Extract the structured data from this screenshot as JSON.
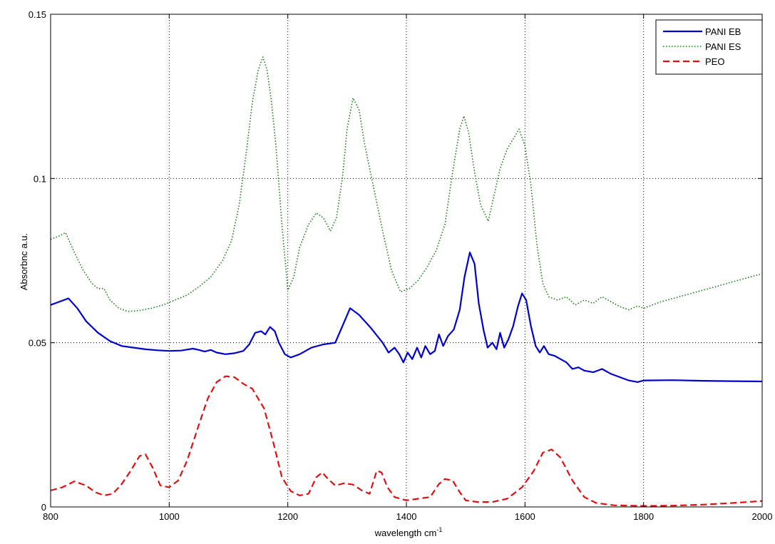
{
  "chart_data": {
    "type": "line",
    "title": "",
    "xlabel": "wavelength cm",
    "xlabel_superscript": "-1",
    "ylabel": "Absorbnc a.u.",
    "xlim": [
      800,
      2000
    ],
    "ylim": [
      0,
      0.15
    ],
    "xticks": [
      800,
      1000,
      1200,
      1400,
      1600,
      1800,
      2000
    ],
    "xtick_labels": [
      "800",
      "1000",
      "1200",
      "1400",
      "1600",
      "1800",
      "2000"
    ],
    "yticks": [
      0,
      0.05,
      0.1,
      0.15
    ],
    "ytick_labels": [
      "0",
      "0.05",
      "0.1",
      "0.15"
    ],
    "grid": true,
    "legend_position": "top-right",
    "series": [
      {
        "name": "PANI EB",
        "color": "#0000cc",
        "style": "solid",
        "points": [
          [
            800,
            0.0615
          ],
          [
            815,
            0.0625
          ],
          [
            830,
            0.0635
          ],
          [
            845,
            0.0605
          ],
          [
            860,
            0.0565
          ],
          [
            880,
            0.053
          ],
          [
            900,
            0.0505
          ],
          [
            920,
            0.049
          ],
          [
            940,
            0.0485
          ],
          [
            960,
            0.048
          ],
          [
            980,
            0.0477
          ],
          [
            1000,
            0.0475
          ],
          [
            1020,
            0.0476
          ],
          [
            1040,
            0.0482
          ],
          [
            1050,
            0.0478
          ],
          [
            1060,
            0.0473
          ],
          [
            1070,
            0.0478
          ],
          [
            1080,
            0.047
          ],
          [
            1095,
            0.0465
          ],
          [
            1110,
            0.0468
          ],
          [
            1125,
            0.0475
          ],
          [
            1135,
            0.0495
          ],
          [
            1145,
            0.053
          ],
          [
            1155,
            0.0535
          ],
          [
            1162,
            0.0525
          ],
          [
            1170,
            0.0548
          ],
          [
            1178,
            0.0535
          ],
          [
            1185,
            0.05
          ],
          [
            1195,
            0.0465
          ],
          [
            1205,
            0.0455
          ],
          [
            1220,
            0.0465
          ],
          [
            1240,
            0.0485
          ],
          [
            1260,
            0.0495
          ],
          [
            1280,
            0.05
          ],
          [
            1292,
            0.055
          ],
          [
            1305,
            0.0605
          ],
          [
            1320,
            0.0585
          ],
          [
            1340,
            0.0545
          ],
          [
            1360,
            0.05
          ],
          [
            1370,
            0.047
          ],
          [
            1380,
            0.0485
          ],
          [
            1388,
            0.0465
          ],
          [
            1395,
            0.044
          ],
          [
            1402,
            0.047
          ],
          [
            1410,
            0.045
          ],
          [
            1418,
            0.0485
          ],
          [
            1425,
            0.0455
          ],
          [
            1432,
            0.049
          ],
          [
            1440,
            0.0465
          ],
          [
            1448,
            0.0475
          ],
          [
            1455,
            0.0525
          ],
          [
            1462,
            0.049
          ],
          [
            1470,
            0.052
          ],
          [
            1480,
            0.054
          ],
          [
            1490,
            0.06
          ],
          [
            1498,
            0.07
          ],
          [
            1507,
            0.0775
          ],
          [
            1515,
            0.074
          ],
          [
            1522,
            0.062
          ],
          [
            1530,
            0.054
          ],
          [
            1537,
            0.0485
          ],
          [
            1545,
            0.05
          ],
          [
            1552,
            0.048
          ],
          [
            1558,
            0.053
          ],
          [
            1565,
            0.0485
          ],
          [
            1572,
            0.051
          ],
          [
            1580,
            0.055
          ],
          [
            1588,
            0.061
          ],
          [
            1595,
            0.065
          ],
          [
            1602,
            0.063
          ],
          [
            1610,
            0.055
          ],
          [
            1618,
            0.049
          ],
          [
            1625,
            0.047
          ],
          [
            1632,
            0.049
          ],
          [
            1640,
            0.0465
          ],
          [
            1650,
            0.046
          ],
          [
            1660,
            0.045
          ],
          [
            1670,
            0.044
          ],
          [
            1680,
            0.042
          ],
          [
            1690,
            0.0425
          ],
          [
            1700,
            0.0415
          ],
          [
            1715,
            0.041
          ],
          [
            1730,
            0.042
          ],
          [
            1745,
            0.0405
          ],
          [
            1760,
            0.0395
          ],
          [
            1775,
            0.0385
          ],
          [
            1790,
            0.038
          ],
          [
            1800,
            0.0385
          ],
          [
            1850,
            0.0386
          ],
          [
            1900,
            0.0384
          ],
          [
            1950,
            0.0383
          ],
          [
            2000,
            0.0382
          ]
        ]
      },
      {
        "name": "PANI ES",
        "color": "#1a7a1a",
        "style": "dotted",
        "points": [
          [
            800,
            0.0815
          ],
          [
            815,
            0.0825
          ],
          [
            825,
            0.0835
          ],
          [
            840,
            0.0775
          ],
          [
            855,
            0.072
          ],
          [
            870,
            0.068
          ],
          [
            880,
            0.0665
          ],
          [
            890,
            0.0665
          ],
          [
            900,
            0.063
          ],
          [
            915,
            0.0605
          ],
          [
            930,
            0.0595
          ],
          [
            950,
            0.0598
          ],
          [
            970,
            0.0605
          ],
          [
            990,
            0.0615
          ],
          [
            1010,
            0.063
          ],
          [
            1030,
            0.0645
          ],
          [
            1050,
            0.067
          ],
          [
            1070,
            0.07
          ],
          [
            1090,
            0.075
          ],
          [
            1105,
            0.081
          ],
          [
            1118,
            0.092
          ],
          [
            1130,
            0.108
          ],
          [
            1140,
            0.123
          ],
          [
            1150,
            0.133
          ],
          [
            1158,
            0.137
          ],
          [
            1165,
            0.133
          ],
          [
            1172,
            0.124
          ],
          [
            1180,
            0.11
          ],
          [
            1190,
            0.086
          ],
          [
            1200,
            0.066
          ],
          [
            1210,
            0.07
          ],
          [
            1220,
            0.079
          ],
          [
            1235,
            0.086
          ],
          [
            1248,
            0.0895
          ],
          [
            1260,
            0.088
          ],
          [
            1272,
            0.084
          ],
          [
            1282,
            0.088
          ],
          [
            1292,
            0.1
          ],
          [
            1300,
            0.115
          ],
          [
            1310,
            0.1245
          ],
          [
            1320,
            0.121
          ],
          [
            1330,
            0.11
          ],
          [
            1345,
            0.097
          ],
          [
            1360,
            0.084
          ],
          [
            1375,
            0.072
          ],
          [
            1390,
            0.0655
          ],
          [
            1405,
            0.0665
          ],
          [
            1420,
            0.069
          ],
          [
            1435,
            0.073
          ],
          [
            1450,
            0.078
          ],
          [
            1465,
            0.086
          ],
          [
            1478,
            0.102
          ],
          [
            1490,
            0.115
          ],
          [
            1497,
            0.119
          ],
          [
            1505,
            0.114
          ],
          [
            1515,
            0.102
          ],
          [
            1525,
            0.092
          ],
          [
            1538,
            0.087
          ],
          [
            1548,
            0.095
          ],
          [
            1558,
            0.103
          ],
          [
            1570,
            0.109
          ],
          [
            1580,
            0.112
          ],
          [
            1590,
            0.115
          ],
          [
            1600,
            0.11
          ],
          [
            1610,
            0.098
          ],
          [
            1620,
            0.08
          ],
          [
            1630,
            0.068
          ],
          [
            1640,
            0.064
          ],
          [
            1655,
            0.063
          ],
          [
            1670,
            0.064
          ],
          [
            1685,
            0.0615
          ],
          [
            1700,
            0.063
          ],
          [
            1715,
            0.062
          ],
          [
            1730,
            0.064
          ],
          [
            1745,
            0.0625
          ],
          [
            1760,
            0.061
          ],
          [
            1775,
            0.06
          ],
          [
            1790,
            0.0612
          ],
          [
            1800,
            0.0605
          ],
          [
            1830,
            0.0625
          ],
          [
            1860,
            0.064
          ],
          [
            1890,
            0.0655
          ],
          [
            1920,
            0.067
          ],
          [
            1950,
            0.0685
          ],
          [
            1980,
            0.07
          ],
          [
            2000,
            0.071
          ]
        ]
      },
      {
        "name": "PEO",
        "color": "#dd1111",
        "style": "dashed",
        "points": [
          [
            800,
            0.005
          ],
          [
            820,
            0.006
          ],
          [
            840,
            0.0078
          ],
          [
            860,
            0.0065
          ],
          [
            875,
            0.0045
          ],
          [
            890,
            0.0035
          ],
          [
            905,
            0.004
          ],
          [
            920,
            0.007
          ],
          [
            935,
            0.011
          ],
          [
            950,
            0.0155
          ],
          [
            960,
            0.016
          ],
          [
            972,
            0.012
          ],
          [
            985,
            0.0065
          ],
          [
            1000,
            0.006
          ],
          [
            1015,
            0.008
          ],
          [
            1030,
            0.014
          ],
          [
            1050,
            0.025
          ],
          [
            1065,
            0.033
          ],
          [
            1080,
            0.038
          ],
          [
            1095,
            0.0398
          ],
          [
            1110,
            0.0395
          ],
          [
            1125,
            0.0375
          ],
          [
            1140,
            0.036
          ],
          [
            1160,
            0.03
          ],
          [
            1175,
            0.02
          ],
          [
            1190,
            0.009
          ],
          [
            1205,
            0.0048
          ],
          [
            1220,
            0.0035
          ],
          [
            1235,
            0.004
          ],
          [
            1248,
            0.009
          ],
          [
            1258,
            0.0105
          ],
          [
            1268,
            0.0085
          ],
          [
            1280,
            0.0065
          ],
          [
            1295,
            0.0072
          ],
          [
            1310,
            0.0068
          ],
          [
            1325,
            0.005
          ],
          [
            1338,
            0.004
          ],
          [
            1350,
            0.011
          ],
          [
            1358,
            0.0105
          ],
          [
            1368,
            0.006
          ],
          [
            1380,
            0.003
          ],
          [
            1400,
            0.002
          ],
          [
            1420,
            0.0025
          ],
          [
            1440,
            0.003
          ],
          [
            1455,
            0.007
          ],
          [
            1465,
            0.0085
          ],
          [
            1478,
            0.008
          ],
          [
            1490,
            0.0045
          ],
          [
            1500,
            0.002
          ],
          [
            1520,
            0.0015
          ],
          [
            1545,
            0.0015
          ],
          [
            1570,
            0.0025
          ],
          [
            1595,
            0.006
          ],
          [
            1615,
            0.011
          ],
          [
            1630,
            0.0165
          ],
          [
            1645,
            0.0175
          ],
          [
            1660,
            0.015
          ],
          [
            1680,
            0.008
          ],
          [
            1700,
            0.003
          ],
          [
            1720,
            0.0012
          ],
          [
            1750,
            0.0005
          ],
          [
            1800,
            0.0003
          ],
          [
            1850,
            0.0004
          ],
          [
            1900,
            0.0007
          ],
          [
            1950,
            0.0012
          ],
          [
            2000,
            0.0018
          ]
        ]
      }
    ]
  }
}
